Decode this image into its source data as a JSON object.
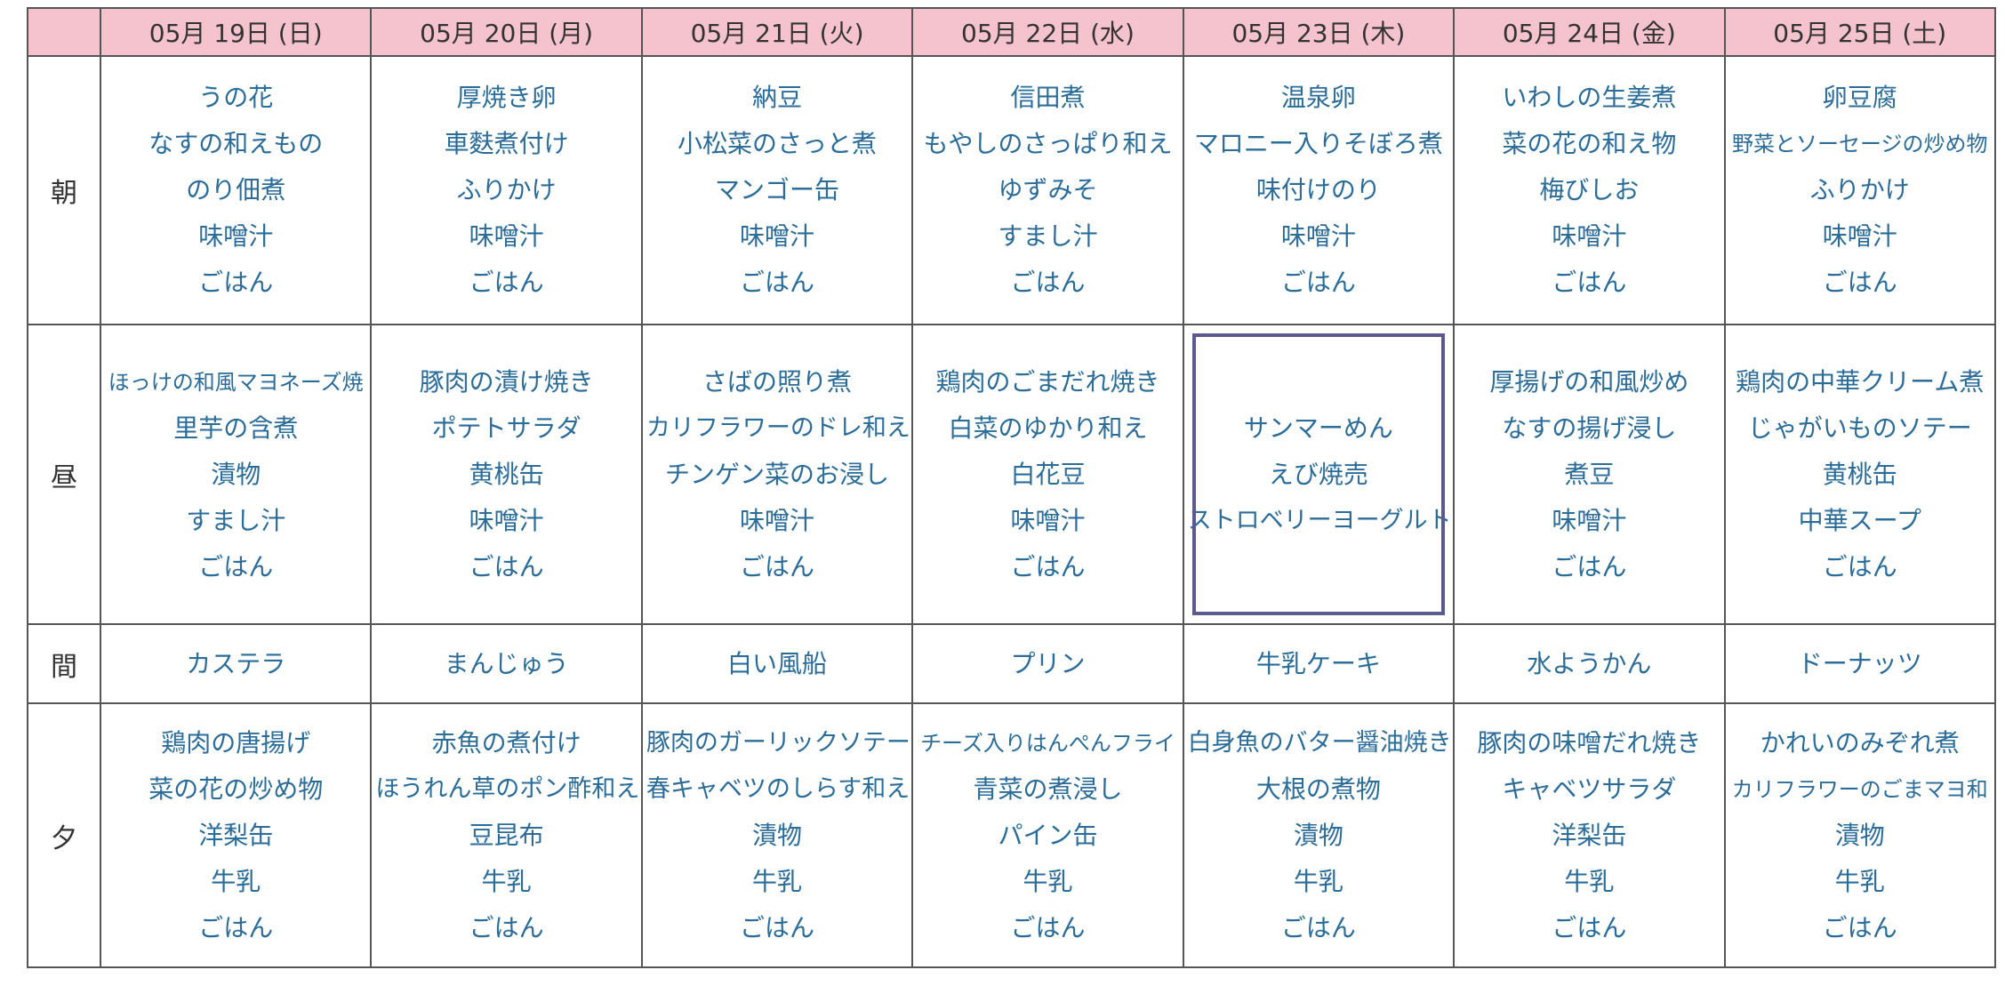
{
  "table": {
    "columns": [
      "05月 19日 (日)",
      "05月 20日 (月)",
      "05月 21日 (火)",
      "05月 22日 (水)",
      "05月 23日 (木)",
      "05月 24日 (金)",
      "05月 25日 (土)"
    ],
    "rows": [
      {
        "label": "朝",
        "cells": [
          [
            "うの花",
            "なすの和えもの",
            "のり佃煮",
            "味噌汁",
            "ごはん"
          ],
          [
            "厚焼き卵",
            "車麩煮付け",
            "ふりかけ",
            "味噌汁",
            "ごはん"
          ],
          [
            "納豆",
            "小松菜のさっと煮",
            "マンゴー缶",
            "味噌汁",
            "ごはん"
          ],
          [
            "信田煮",
            "もやしのさっぱり和え",
            "ゆずみそ",
            "すまし汁",
            "ごはん"
          ],
          [
            "温泉卵",
            "マロニー入りそぼろ煮",
            "味付けのり",
            "味噌汁",
            "ごはん"
          ],
          [
            "いわしの生姜煮",
            "菜の花の和え物",
            "梅びしお",
            "味噌汁",
            "ごはん"
          ],
          [
            "卵豆腐",
            "野菜とソーセージの炒め物",
            "ふりかけ",
            "味噌汁",
            "ごはん"
          ]
        ]
      },
      {
        "label": "昼",
        "cells": [
          [
            "ほっけの和風マヨネーズ焼",
            "里芋の含煮",
            "漬物",
            "すまし汁",
            "ごはん"
          ],
          [
            "豚肉の漬け焼き",
            "ポテトサラダ",
            "黄桃缶",
            "味噌汁",
            "ごはん"
          ],
          [
            "さばの照り煮",
            "カリフラワーのドレ和え",
            "チンゲン菜のお浸し",
            "味噌汁",
            "ごはん"
          ],
          [
            "鶏肉のごまだれ焼き",
            "白菜のゆかり和え",
            "白花豆",
            "味噌汁",
            "ごはん"
          ],
          [
            "サンマーめん",
            "えび焼売",
            "ストロベリーヨーグルト"
          ],
          [
            "厚揚げの和風炒め",
            "なすの揚げ浸し",
            "煮豆",
            "味噌汁",
            "ごはん"
          ],
          [
            "鶏肉の中華クリーム煮",
            "じゃがいものソテー",
            "黄桃缶",
            "中華スープ",
            "ごはん"
          ]
        ]
      },
      {
        "label": "間",
        "cells": [
          [
            "カステラ"
          ],
          [
            "まんじゅう"
          ],
          [
            "白い風船"
          ],
          [
            "プリン"
          ],
          [
            "牛乳ケーキ"
          ],
          [
            "水ようかん"
          ],
          [
            "ドーナッツ"
          ]
        ]
      },
      {
        "label": "夕",
        "cells": [
          [
            "鶏肉の唐揚げ",
            "菜の花の炒め物",
            "洋梨缶",
            "牛乳",
            "ごはん"
          ],
          [
            "赤魚の煮付け",
            "ほうれん草のポン酢和え",
            "豆昆布",
            "牛乳",
            "ごはん"
          ],
          [
            "豚肉のガーリックソテー",
            "春キャベツのしらす和え",
            "漬物",
            "牛乳",
            "ごはん"
          ],
          [
            "チーズ入りはんぺんフライ",
            "青菜の煮浸し",
            "パイン缶",
            "牛乳",
            "ごはん"
          ],
          [
            "白身魚のバター醤油焼き",
            "大根の煮物",
            "漬物",
            "牛乳",
            "ごはん"
          ],
          [
            "豚肉の味噌だれ焼き",
            "キャベツサラダ",
            "洋梨缶",
            "牛乳",
            "ごはん"
          ],
          [
            "かれいのみぞれ煮",
            "カリフラワーのごまマヨ和",
            "漬物",
            "牛乳",
            "ごはん"
          ]
        ]
      }
    ]
  }
}
